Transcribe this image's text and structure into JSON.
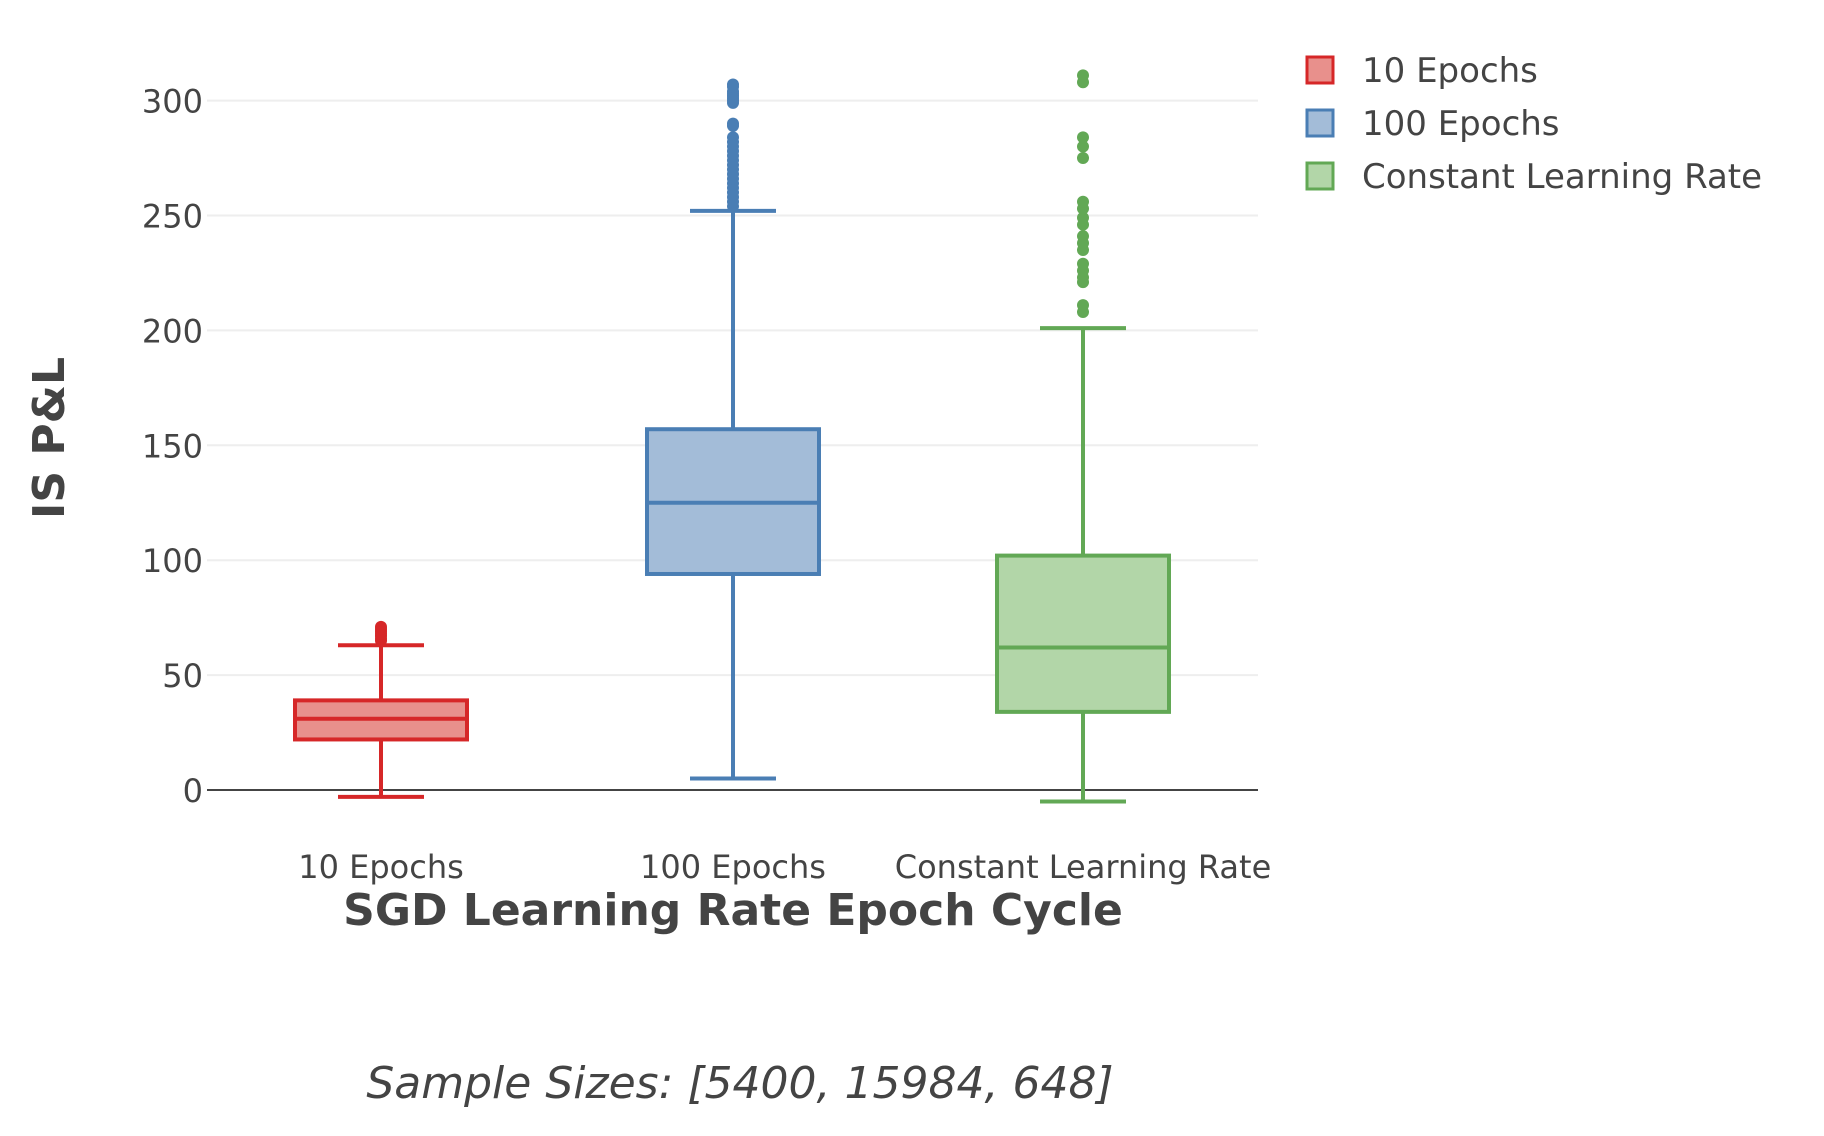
{
  "chart_data": {
    "type": "box",
    "title": "",
    "xlabel": "SGD Learning Rate Epoch Cycle",
    "ylabel": "IS P&L",
    "ylim": [
      -12,
      330
    ],
    "yticks": [
      0,
      50,
      100,
      150,
      200,
      250,
      300
    ],
    "grid": true,
    "legend_position": "top-right",
    "categories": [
      "10 Epochs",
      "100 Epochs",
      "Constant Learning Rate"
    ],
    "series": [
      {
        "name": "10 Epochs",
        "color": "#d62728",
        "fill": "#e8908c",
        "q1": 22,
        "median": 31,
        "q3": 39,
        "whisker_low": -3,
        "whisker_high": 63,
        "outliers": [
          65,
          66,
          67,
          68,
          69,
          70,
          71
        ]
      },
      {
        "name": "100 Epochs",
        "color": "#4a7eb4",
        "fill": "#a3bcd8",
        "q1": 94,
        "median": 125,
        "q3": 157,
        "whisker_low": 5,
        "whisker_high": 252,
        "outliers": [
          254,
          256,
          258,
          260,
          262,
          264,
          266,
          268,
          270,
          272,
          274,
          276,
          278,
          280,
          282,
          284,
          289,
          290,
          299,
          300,
          301,
          302,
          303,
          304,
          306,
          307
        ]
      },
      {
        "name": "Constant Learning Rate",
        "color": "#62a855",
        "fill": "#b2d6a8",
        "q1": 34,
        "median": 62,
        "q3": 102,
        "whisker_low": -5,
        "whisker_high": 201,
        "outliers": [
          208,
          211,
          221,
          223,
          226,
          229,
          235,
          238,
          241,
          246,
          249,
          253,
          256,
          275,
          280,
          284,
          308,
          311
        ]
      }
    ],
    "annotation": "Sample Sizes: [5400, 15984, 648]"
  }
}
